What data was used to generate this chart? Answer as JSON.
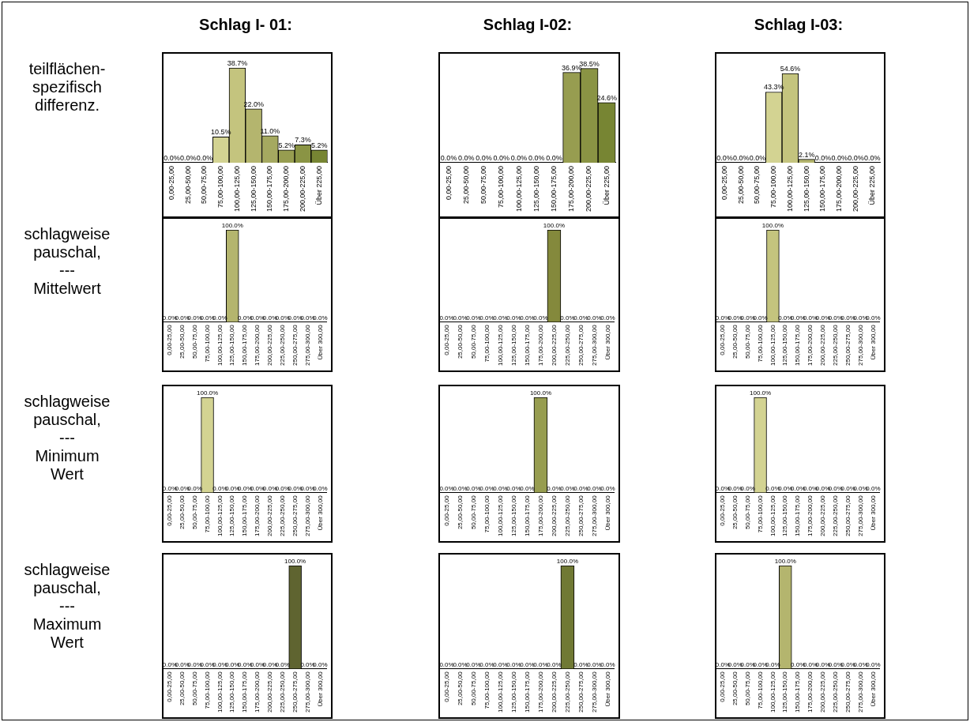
{
  "chart_data": [
    {
      "type": "bar",
      "title": "Schlag I- 01:",
      "ylabel": "teilflächen-\nspezifisch\ndifferenz.",
      "categories": [
        "0,00-25,00",
        "25,00-50,00",
        "50,00-75,00",
        "75,00-100,00",
        "100,00-125,00",
        "125,00-150,00",
        "150,00-175,00",
        "175,00-200,00",
        "200,00-225,00",
        "Über 225,00"
      ],
      "values": [
        0,
        0,
        0,
        10.5,
        38.7,
        22.0,
        11.0,
        5.2,
        7.3,
        5.2
      ],
      "value_labels": [
        "0.0%",
        "0.0%",
        "0.0%",
        "10.5%",
        "38.7%",
        "22.0%",
        "11.0%",
        "5.2%",
        "7.3%",
        "5.2%"
      ],
      "colors": [
        "#d8d8a0",
        "#d8d8a0",
        "#d6d69a",
        "#d3d392",
        "#c4c47e",
        "#b4b56e",
        "#a5a960",
        "#979d50",
        "#8a9444",
        "#778533"
      ]
    },
    {
      "type": "bar",
      "title": "Schlag I-02:",
      "categories": [
        "0,00-25,00",
        "25,00-50,00",
        "50,00-75,00",
        "75,00-100,00",
        "100,00-125,00",
        "125,00-150,00",
        "150,00-175,00",
        "175,00-200,00",
        "200,00-225,00",
        "Über 225,00"
      ],
      "values": [
        0,
        0,
        0,
        0,
        0,
        0,
        0,
        36.9,
        38.5,
        24.6
      ],
      "value_labels": [
        "0.0%",
        "0.0%",
        "0.0%",
        "0.0%",
        "0.0%",
        "0.0%",
        "0.0%",
        "36.9%",
        "38.5%",
        "24.6%"
      ],
      "colors": [
        "#d8d8a0",
        "#d8d8a0",
        "#d6d69a",
        "#d3d392",
        "#c4c47e",
        "#b4b56e",
        "#a5a960",
        "#979d50",
        "#8a9444",
        "#778533"
      ]
    },
    {
      "type": "bar",
      "title": "Schlag I-03:",
      "categories": [
        "0,00-25,00",
        "25,00-50,00",
        "50,00-75,00",
        "75,00-100,00",
        "100,00-125,00",
        "125,00-150,00",
        "150,00-175,00",
        "175,00-200,00",
        "200,00-225,00",
        "Über 225,00"
      ],
      "values": [
        0,
        0,
        0,
        43.3,
        54.6,
        2.1,
        0,
        0,
        0,
        0
      ],
      "value_labels": [
        "0.0%",
        "0.0%",
        "0.0%",
        "43.3%",
        "54.6%",
        "2.1%",
        "0.0%",
        "0.0%",
        "0.0%",
        "0.0%"
      ],
      "colors": [
        "#d8d8a0",
        "#d8d8a0",
        "#d6d69a",
        "#d3d392",
        "#c4c47e",
        "#b4b56e",
        "#a5a960",
        "#979d50",
        "#8a9444",
        "#778533"
      ]
    },
    {
      "type": "bar",
      "ylabel": "schlagweise\npauschal,\n---\nMittelwert",
      "categories": [
        "0,00-25,00",
        "25,00-50,00",
        "50,00-75,00",
        "75,00-100,00",
        "100,00-125,00",
        "125,00-150,00",
        "150,00-175,00",
        "175,00-200,00",
        "200,00-225,00",
        "225,00-250,00",
        "250,00-275,00",
        "275,00-300,00",
        "Über 300,00"
      ],
      "values": [
        0,
        0,
        0,
        0,
        0,
        100,
        0,
        0,
        0,
        0,
        0,
        0,
        0
      ],
      "value_labels": [
        "0.0%",
        "0.0%",
        "0.0%",
        "0.0%",
        "0.0%",
        "100.0%",
        "0.0%",
        "0.0%",
        "0.0%",
        "0.0%",
        "0.0%",
        "0.0%",
        "0.0%"
      ],
      "colors": [
        "#d8d8a0",
        "#d8d8a0",
        "#d6d69a",
        "#d3d392",
        "#c4c47e",
        "#b4b56e",
        "#a5a960",
        "#979d50",
        "#84893c",
        "#707934",
        "#5f6430",
        "#5f6430",
        "#5f6430"
      ]
    },
    {
      "type": "bar",
      "categories": [
        "0,00-25,00",
        "25,00-50,00",
        "50,00-75,00",
        "75,00-100,00",
        "100,00-125,00",
        "125,00-150,00",
        "150,00-175,00",
        "175,00-200,00",
        "200,00-225,00",
        "225,00-250,00",
        "250,00-275,00",
        "275,00-300,00",
        "Über 300,00"
      ],
      "values": [
        0,
        0,
        0,
        0,
        0,
        0,
        0,
        0,
        100,
        0,
        0,
        0,
        0
      ],
      "value_labels": [
        "0.0%",
        "0.0%",
        "0.0%",
        "0.0%",
        "0.0%",
        "0.0%",
        "0.0%",
        "0.0%",
        "100.0%",
        "0.0%",
        "0.0%",
        "0.0%",
        "0.0%"
      ],
      "colors": [
        "#d8d8a0",
        "#d8d8a0",
        "#d6d69a",
        "#d3d392",
        "#c4c47e",
        "#b4b56e",
        "#a5a960",
        "#979d50",
        "#84893c",
        "#707934",
        "#5f6430",
        "#5f6430",
        "#5f6430"
      ]
    },
    {
      "type": "bar",
      "categories": [
        "0,00-25,00",
        "25,00-50,00",
        "50,00-75,00",
        "75,00-100,00",
        "100,00-125,00",
        "125,00-150,00",
        "150,00-175,00",
        "175,00-200,00",
        "200,00-225,00",
        "225,00-250,00",
        "250,00-275,00",
        "275,00-300,00",
        "Über 300,00"
      ],
      "values": [
        0,
        0,
        0,
        0,
        100,
        0,
        0,
        0,
        0,
        0,
        0,
        0,
        0
      ],
      "value_labels": [
        "0.0%",
        "0.0%",
        "0.0%",
        "0.0%",
        "100.0%",
        "0.0%",
        "0.0%",
        "0.0%",
        "0.0%",
        "0.0%",
        "0.0%",
        "0.0%",
        "0.0%"
      ],
      "colors": [
        "#d8d8a0",
        "#d8d8a0",
        "#d6d69a",
        "#d3d392",
        "#c4c47e",
        "#b4b56e",
        "#a5a960",
        "#979d50",
        "#84893c",
        "#707934",
        "#5f6430",
        "#5f6430",
        "#5f6430"
      ]
    },
    {
      "type": "bar",
      "ylabel": "schlagweise\npauschal,\n---\nMinimum\nWert",
      "categories": [
        "0,00-25,00",
        "25,00-50,00",
        "50,00-75,00",
        "75,00-100,00",
        "100,00-125,00",
        "125,00-150,00",
        "150,00-175,00",
        "175,00-200,00",
        "200,00-225,00",
        "225,00-250,00",
        "250,00-275,00",
        "275,00-300,00",
        "Über 300,00"
      ],
      "values": [
        0,
        0,
        0,
        100,
        0,
        0,
        0,
        0,
        0,
        0,
        0,
        0,
        0
      ],
      "value_labels": [
        "0.0%",
        "0.0%",
        "0.0%",
        "100.0%",
        "0.0%",
        "0.0%",
        "0.0%",
        "0.0%",
        "0.0%",
        "0.0%",
        "0.0%",
        "0.0%",
        "0.0%"
      ],
      "colors": [
        "#d8d8a0",
        "#d8d8a0",
        "#d6d69a",
        "#d3d392",
        "#c4c47e",
        "#b4b56e",
        "#a5a960",
        "#979d50",
        "#84893c",
        "#707934",
        "#5f6430",
        "#5f6430",
        "#5f6430"
      ]
    },
    {
      "type": "bar",
      "categories": [
        "0,00-25,00",
        "25,00-50,00",
        "50,00-75,00",
        "75,00-100,00",
        "100,00-125,00",
        "125,00-150,00",
        "150,00-175,00",
        "175,00-200,00",
        "200,00-225,00",
        "225,00-250,00",
        "250,00-275,00",
        "275,00-300,00",
        "Über 300,00"
      ],
      "values": [
        0,
        0,
        0,
        0,
        0,
        0,
        0,
        100,
        0,
        0,
        0,
        0,
        0
      ],
      "value_labels": [
        "0.0%",
        "0.0%",
        "0.0%",
        "0.0%",
        "0.0%",
        "0.0%",
        "0.0%",
        "100.0%",
        "0.0%",
        "0.0%",
        "0.0%",
        "0.0%",
        "0.0%"
      ],
      "colors": [
        "#d8d8a0",
        "#d8d8a0",
        "#d6d69a",
        "#d3d392",
        "#c4c47e",
        "#b4b56e",
        "#a5a960",
        "#979d50",
        "#84893c",
        "#707934",
        "#5f6430",
        "#5f6430",
        "#5f6430"
      ]
    },
    {
      "type": "bar",
      "categories": [
        "0,00-25,00",
        "25,00-50,00",
        "50,00-75,00",
        "75,00-100,00",
        "100,00-125,00",
        "125,00-150,00",
        "150,00-175,00",
        "175,00-200,00",
        "200,00-225,00",
        "225,00-250,00",
        "250,00-275,00",
        "275,00-300,00",
        "Über 300,00"
      ],
      "values": [
        0,
        0,
        0,
        100,
        0,
        0,
        0,
        0,
        0,
        0,
        0,
        0,
        0
      ],
      "value_labels": [
        "0.0%",
        "0.0%",
        "0.0%",
        "100.0%",
        "0.0%",
        "0.0%",
        "0.0%",
        "0.0%",
        "0.0%",
        "0.0%",
        "0.0%",
        "0.0%",
        "0.0%"
      ],
      "colors": [
        "#d8d8a0",
        "#d8d8a0",
        "#d6d69a",
        "#d3d392",
        "#c4c47e",
        "#b4b56e",
        "#a5a960",
        "#979d50",
        "#84893c",
        "#707934",
        "#5f6430",
        "#5f6430",
        "#5f6430"
      ]
    },
    {
      "type": "bar",
      "ylabel": "schlagweise\npauschal,\n---\nMaximum\nWert",
      "categories": [
        "0,00-25,00",
        "25,00-50,00",
        "50,00-75,00",
        "75,00-100,00",
        "100,00-125,00",
        "125,00-150,00",
        "150,00-175,00",
        "175,00-200,00",
        "200,00-225,00",
        "225,00-250,00",
        "250,00-275,00",
        "275,00-300,00",
        "Über 300,00"
      ],
      "values": [
        0,
        0,
        0,
        0,
        0,
        0,
        0,
        0,
        0,
        0,
        100,
        0,
        0
      ],
      "value_labels": [
        "0.0%",
        "0.0%",
        "0.0%",
        "0.0%",
        "0.0%",
        "0.0%",
        "0.0%",
        "0.0%",
        "0.0%",
        "0.0%",
        "100.0%",
        "0.0%",
        "0.0%"
      ],
      "colors": [
        "#d8d8a0",
        "#d8d8a0",
        "#d6d69a",
        "#d3d392",
        "#c4c47e",
        "#b4b56e",
        "#a5a960",
        "#979d50",
        "#84893c",
        "#707934",
        "#5f6430",
        "#5f6430",
        "#5f6430"
      ]
    },
    {
      "type": "bar",
      "categories": [
        "0,00-25,00",
        "25,00-50,00",
        "50,00-75,00",
        "75,00-100,00",
        "100,00-125,00",
        "125,00-150,00",
        "150,00-175,00",
        "175,00-200,00",
        "200,00-225,00",
        "225,00-250,00",
        "250,00-275,00",
        "275,00-300,00",
        "Über 300,00"
      ],
      "values": [
        0,
        0,
        0,
        0,
        0,
        0,
        0,
        0,
        0,
        100,
        0,
        0,
        0
      ],
      "value_labels": [
        "0.0%",
        "0.0%",
        "0.0%",
        "0.0%",
        "0.0%",
        "0.0%",
        "0.0%",
        "0.0%",
        "0.0%",
        "100.0%",
        "0.0%",
        "0.0%",
        "0.0%"
      ],
      "colors": [
        "#d8d8a0",
        "#d8d8a0",
        "#d6d69a",
        "#d3d392",
        "#c4c47e",
        "#b4b56e",
        "#a5a960",
        "#979d50",
        "#84893c",
        "#707934",
        "#5f6430",
        "#5f6430",
        "#5f6430"
      ]
    },
    {
      "type": "bar",
      "categories": [
        "0,00-25,00",
        "25,00-50,00",
        "50,00-75,00",
        "75,00-100,00",
        "100,00-125,00",
        "125,00-150,00",
        "150,00-175,00",
        "175,00-200,00",
        "200,00-225,00",
        "225,00-250,00",
        "250,00-275,00",
        "275,00-300,00",
        "Über 300,00"
      ],
      "values": [
        0,
        0,
        0,
        0,
        0,
        100,
        0,
        0,
        0,
        0,
        0,
        0,
        0
      ],
      "value_labels": [
        "0.0%",
        "0.0%",
        "0.0%",
        "0.0%",
        "0.0%",
        "100.0%",
        "0.0%",
        "0.0%",
        "0.0%",
        "0.0%",
        "0.0%",
        "0.0%",
        "0.0%"
      ],
      "colors": [
        "#d8d8a0",
        "#d8d8a0",
        "#d6d69a",
        "#d3d392",
        "#c4c47e",
        "#b4b56e",
        "#a5a960",
        "#979d50",
        "#84893c",
        "#707934",
        "#5f6430",
        "#5f6430",
        "#5f6430"
      ]
    }
  ]
}
